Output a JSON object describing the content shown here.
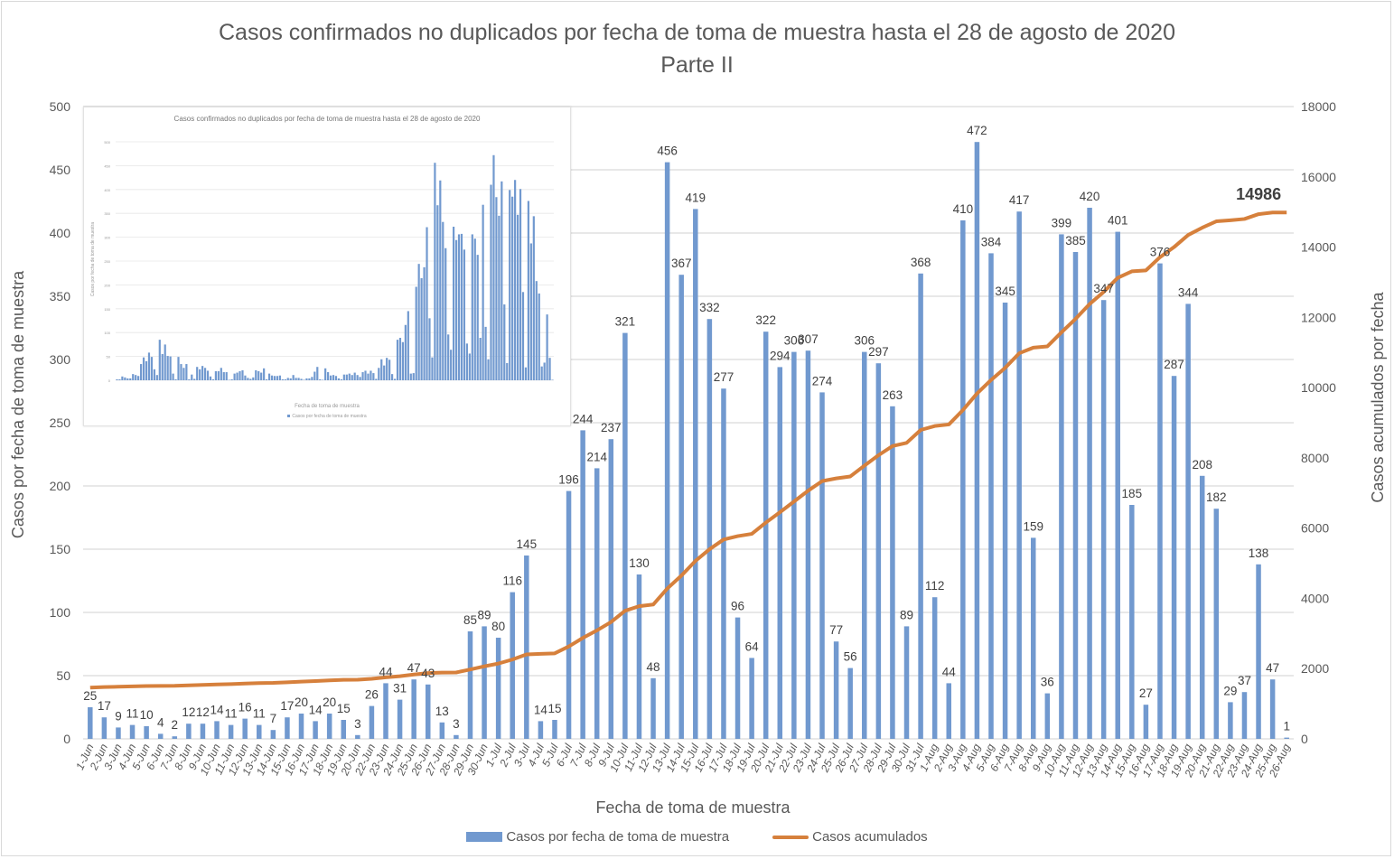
{
  "chart_data": {
    "type": "bar",
    "combo": "bar+line (dual axis)",
    "title": "Casos confirmados no duplicados por fecha de toma de muestra hasta el 28 de agosto de 2020",
    "subtitle": "Parte II",
    "xlabel": "Fecha de toma de muestra",
    "ylabel": "Casos por fecha de toma de muestra",
    "y2label": "Casos acumulados por fecha",
    "ylim": [
      0,
      500
    ],
    "yticks": [
      0,
      50,
      100,
      150,
      200,
      250,
      300,
      350,
      400,
      450,
      500
    ],
    "y2lim": [
      0,
      18000
    ],
    "y2ticks": [
      0,
      2000,
      4000,
      6000,
      8000,
      10000,
      12000,
      14000,
      16000,
      18000
    ],
    "grid": true,
    "legend_position": "bottom",
    "categories": [
      "1-Jun",
      "2-Jun",
      "3-Jun",
      "4-Jun",
      "5-Jun",
      "6-Jun",
      "7-Jun",
      "8-Jun",
      "9-Jun",
      "10-Jun",
      "11-Jun",
      "12-Jun",
      "13-Jun",
      "14-Jun",
      "15-Jun",
      "16-Jun",
      "17-Jun",
      "18-Jun",
      "19-Jun",
      "20-Jun",
      "22-Jun",
      "23-Jun",
      "24-Jun",
      "25-Jun",
      "26-Jun",
      "27-Jun",
      "28-Jun",
      "29-Jun",
      "30-Jun",
      "1-Jul",
      "2-Jul",
      "3-Jul",
      "4-Jul",
      "5-Jul",
      "6-Jul",
      "7-Jul",
      "8-Jul",
      "9-Jul",
      "10-Jul",
      "11-Jul",
      "12-Jul",
      "13-Jul",
      "14-Jul",
      "15-Jul",
      "16-Jul",
      "17-Jul",
      "18-Jul",
      "19-Jul",
      "20-Jul",
      "21-Jul",
      "22-Jul",
      "23-Jul",
      "24-Jul",
      "25-Jul",
      "26-Jul",
      "27-Jul",
      "28-Jul",
      "29-Jul",
      "30-Jul",
      "31-Jul",
      "1-Aug",
      "2-Aug",
      "3-Aug",
      "4-Aug",
      "5-Aug",
      "6-Aug",
      "7-Aug",
      "8-Aug",
      "9-Aug",
      "10-Aug",
      "11-Aug",
      "12-Aug",
      "13-Aug",
      "14-Aug",
      "15-Aug",
      "16-Aug",
      "17-Aug",
      "18-Aug",
      "19-Aug",
      "20-Aug",
      "21-Aug",
      "22-Aug",
      "23-Aug",
      "24-Aug",
      "25-Aug",
      "26-Aug"
    ],
    "series": [
      {
        "name": "Casos por fecha de toma de muestra",
        "type": "bar",
        "axis": "left",
        "color": "#7199cf",
        "values": [
          25,
          17,
          9,
          11,
          10,
          4,
          2,
          12,
          12,
          14,
          11,
          16,
          11,
          7,
          17,
          20,
          14,
          20,
          15,
          3,
          26,
          44,
          31,
          47,
          43,
          13,
          3,
          85,
          89,
          80,
          116,
          145,
          14,
          15,
          196,
          244,
          214,
          237,
          321,
          130,
          48,
          456,
          367,
          419,
          332,
          277,
          96,
          64,
          322,
          294,
          306,
          307,
          274,
          77,
          56,
          306,
          297,
          263,
          89,
          368,
          112,
          44,
          410,
          472,
          384,
          345,
          417,
          159,
          36,
          399,
          385,
          420,
          347,
          401,
          185,
          27,
          376,
          287,
          344,
          208,
          182,
          29,
          37,
          138,
          47,
          1
        ]
      },
      {
        "name": "Casos acumulados",
        "type": "line",
        "axis": "right",
        "color": "#d6803c",
        "start_offset": 1433,
        "final_value": 14986,
        "final_label": "14986"
      }
    ],
    "inset": {
      "title": "Casos confirmados no duplicados por fecha de toma de muestra hasta el 28 de agosto de 2020",
      "ylabel": "Casos por fecha de toma de muestra",
      "xlabel": "Fecha de toma de muestra",
      "legend": "Casos por fecha de toma de muestra",
      "ylim": [
        0,
        500
      ],
      "yticks": [
        0,
        50,
        100,
        150,
        200,
        250,
        300,
        350,
        400,
        450,
        500
      ],
      "early_values": [
        2,
        2,
        8,
        6,
        4,
        4,
        13,
        11,
        9,
        34,
        48,
        40,
        58,
        49,
        23,
        11,
        85,
        55,
        75,
        51,
        50,
        14,
        2,
        49,
        34,
        26,
        34,
        2,
        12,
        3,
        28,
        23,
        30,
        26,
        20,
        8,
        2,
        19,
        19,
        26,
        17,
        17,
        1,
        2,
        14,
        16,
        19,
        21,
        10,
        5,
        3,
        6,
        21,
        19,
        16,
        25,
        2,
        14,
        10,
        9,
        9,
        10,
        2,
        2,
        5,
        4,
        11,
        5,
        5,
        3,
        1,
        4,
        4,
        7,
        18,
        28,
        2,
        1,
        25,
        17,
        10,
        11,
        9,
        4,
        2,
        12,
        12,
        14,
        11,
        16,
        11,
        7,
        17,
        20,
        14,
        20,
        15,
        3
      ]
    }
  }
}
